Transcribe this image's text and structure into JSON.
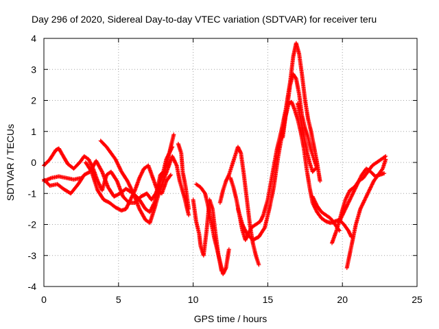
{
  "chart_data": {
    "type": "scatter",
    "title": "Day 296 of 2020, Sidereal Day-to-day VTEC variation (SDTVAR) for receiver teru",
    "xlabel": "GPS time / hours",
    "ylabel": "SDTVAR / TECUs",
    "xlim": [
      0,
      25
    ],
    "ylim": [
      -4,
      4
    ],
    "xticks": [
      "0",
      "5",
      "10",
      "15",
      "20",
      "25"
    ],
    "yticks": [
      "-4",
      "-3",
      "-2",
      "-1",
      "0",
      "1",
      "2",
      "3",
      "4"
    ],
    "grid": true,
    "marker": "+",
    "series_color": "#ff0000",
    "series": [
      {
        "name": "s1",
        "points": [
          [
            0,
            -0.1
          ],
          [
            0.4,
            0.1
          ],
          [
            0.8,
            0.4
          ],
          [
            1.0,
            0.45
          ],
          [
            1.3,
            0.2
          ],
          [
            1.6,
            -0.05
          ],
          [
            2.0,
            -0.2
          ],
          [
            2.4,
            0.0
          ],
          [
            2.7,
            0.2
          ],
          [
            3.0,
            0.1
          ],
          [
            3.3,
            -0.2
          ],
          [
            3.6,
            -0.6
          ],
          [
            3.9,
            -0.9
          ],
          [
            4.2,
            -0.4
          ],
          [
            4.5,
            -0.3
          ],
          [
            4.9,
            -0.6
          ],
          [
            5.3,
            -1.1
          ],
          [
            5.7,
            -1.3
          ],
          [
            6.1,
            -1.3
          ],
          [
            6.5,
            -1.1
          ],
          [
            6.9,
            -1.0
          ],
          [
            7.2,
            -1.2
          ],
          [
            7.5,
            -1.0
          ],
          [
            7.8,
            -0.6
          ],
          [
            8.1,
            -0.3
          ],
          [
            8.4,
            0.3
          ],
          [
            8.7,
            0.9
          ]
        ]
      },
      {
        "name": "s2",
        "points": [
          [
            0,
            -0.6
          ],
          [
            0.5,
            -0.5
          ],
          [
            1.0,
            -0.45
          ],
          [
            1.5,
            -0.5
          ],
          [
            2.0,
            -0.55
          ],
          [
            2.5,
            -0.5
          ]
        ]
      },
      {
        "name": "s3",
        "points": [
          [
            0,
            -0.55
          ],
          [
            0.4,
            -0.75
          ],
          [
            0.9,
            -0.7
          ],
          [
            1.3,
            -0.85
          ],
          [
            1.8,
            -1.0
          ],
          [
            2.3,
            -0.7
          ],
          [
            2.7,
            -0.4
          ],
          [
            3.1,
            -0.3
          ],
          [
            3.5,
            0.05
          ],
          [
            3.9,
            -0.3
          ],
          [
            4.3,
            -0.8
          ],
          [
            4.7,
            -1.1
          ],
          [
            5.1,
            -1.0
          ],
          [
            5.5,
            -0.85
          ],
          [
            6.0,
            -1.0
          ],
          [
            6.4,
            -1.2
          ],
          [
            6.8,
            -1.5
          ],
          [
            7.1,
            -1.6
          ],
          [
            7.4,
            -1.3
          ],
          [
            7.6,
            -0.9
          ],
          [
            7.8,
            -0.4
          ],
          [
            8.0,
            -0.3
          ],
          [
            8.2,
            0.1
          ],
          [
            8.4,
            0.3
          ],
          [
            8.6,
            0.5
          ]
        ]
      },
      {
        "name": "s4",
        "points": [
          [
            3.8,
            0.7
          ],
          [
            4.2,
            0.5
          ],
          [
            4.5,
            0.3
          ],
          [
            4.8,
            0.1
          ],
          [
            5.2,
            -0.3
          ],
          [
            5.6,
            -0.6
          ],
          [
            6.0,
            -1.0
          ],
          [
            6.4,
            -1.5
          ],
          [
            6.8,
            -1.85
          ],
          [
            7.1,
            -1.95
          ],
          [
            7.4,
            -1.5
          ],
          [
            7.7,
            -1.0
          ],
          [
            8.0,
            -0.6
          ],
          [
            8.3,
            -0.2
          ],
          [
            8.6,
            0.2
          ],
          [
            8.9,
            -0.1
          ],
          [
            9.1,
            -0.6
          ],
          [
            9.4,
            -1.1
          ],
          [
            9.7,
            -1.7
          ]
        ]
      },
      {
        "name": "s5",
        "points": [
          [
            2.8,
            0.0
          ],
          [
            3.2,
            -0.3
          ],
          [
            3.6,
            -0.9
          ],
          [
            4.0,
            -1.2
          ],
          [
            4.4,
            -1.3
          ],
          [
            4.8,
            -1.45
          ],
          [
            5.2,
            -1.55
          ],
          [
            5.5,
            -1.5
          ],
          [
            5.8,
            -1.2
          ],
          [
            6.1,
            -0.9
          ],
          [
            6.4,
            -0.5
          ],
          [
            6.7,
            -0.2
          ],
          [
            7.0,
            -0.1
          ],
          [
            7.3,
            -0.5
          ],
          [
            7.6,
            -0.9
          ],
          [
            7.9,
            -1.0
          ],
          [
            8.2,
            -0.6
          ],
          [
            8.5,
            -0.4
          ]
        ]
      },
      {
        "name": "s6",
        "points": [
          [
            9.0,
            0.6
          ],
          [
            9.2,
            0.3
          ],
          [
            9.3,
            -0.3
          ],
          [
            9.5,
            -0.8
          ],
          [
            9.7,
            -1.5
          ]
        ]
      },
      {
        "name": "s7",
        "points": [
          [
            10.0,
            -1.2
          ],
          [
            10.2,
            -1.9
          ],
          [
            10.4,
            -2.3
          ],
          [
            10.5,
            -2.7
          ],
          [
            10.7,
            -3.0
          ],
          [
            10.9,
            -2.2
          ],
          [
            11.1,
            -1.2
          ],
          [
            11.3,
            -1.5
          ],
          [
            11.5,
            -2.3
          ],
          [
            11.7,
            -3.0
          ],
          [
            11.9,
            -3.5
          ]
        ]
      },
      {
        "name": "s8",
        "points": [
          [
            10.2,
            -0.7
          ],
          [
            10.5,
            -0.8
          ],
          [
            10.8,
            -1.0
          ],
          [
            11.0,
            -1.4
          ],
          [
            11.2,
            -1.9
          ],
          [
            11.4,
            -2.4
          ],
          [
            11.6,
            -2.8
          ],
          [
            11.8,
            -3.2
          ],
          [
            12.0,
            -3.6
          ],
          [
            12.2,
            -3.4
          ],
          [
            12.4,
            -2.8
          ]
        ]
      },
      {
        "name": "s9",
        "points": [
          [
            11.8,
            -1.3
          ],
          [
            12.0,
            -0.9
          ],
          [
            12.2,
            -0.6
          ],
          [
            12.4,
            -0.4
          ],
          [
            12.6,
            -0.1
          ],
          [
            12.8,
            0.2
          ],
          [
            13.0,
            0.5
          ],
          [
            13.2,
            0.3
          ],
          [
            13.4,
            -0.4
          ],
          [
            13.6,
            -1.2
          ],
          [
            13.8,
            -2.0
          ],
          [
            14.0,
            -2.6
          ],
          [
            14.2,
            -3.0
          ],
          [
            14.4,
            -3.3
          ]
        ]
      },
      {
        "name": "s10",
        "points": [
          [
            12.5,
            -0.5
          ],
          [
            12.7,
            -0.8
          ],
          [
            12.9,
            -1.2
          ],
          [
            13.1,
            -1.7
          ],
          [
            13.3,
            -2.2
          ],
          [
            13.5,
            -2.5
          ],
          [
            13.7,
            -2.3
          ],
          [
            13.9,
            -2.1
          ],
          [
            14.2,
            -2.0
          ],
          [
            14.5,
            -1.9
          ],
          [
            14.7,
            -1.7
          ],
          [
            15.0,
            -1.2
          ],
          [
            15.3,
            -0.4
          ],
          [
            15.6,
            0.4
          ],
          [
            15.9,
            1.0
          ],
          [
            16.2,
            1.7
          ],
          [
            16.5,
            2.6
          ],
          [
            16.7,
            3.4
          ],
          [
            16.9,
            3.85
          ],
          [
            17.1,
            3.5
          ],
          [
            17.3,
            2.8
          ],
          [
            17.5,
            2.0
          ],
          [
            17.7,
            1.4
          ],
          [
            17.9,
            1.0
          ],
          [
            18.1,
            0.5
          ],
          [
            18.3,
            0.0
          ],
          [
            18.5,
            -0.6
          ]
        ]
      },
      {
        "name": "s11",
        "points": [
          [
            13.0,
            -1.5
          ],
          [
            13.3,
            -2.0
          ],
          [
            13.6,
            -2.3
          ],
          [
            14.0,
            -2.5
          ],
          [
            14.4,
            -2.4
          ],
          [
            14.8,
            -2.1
          ],
          [
            15.1,
            -1.5
          ],
          [
            15.4,
            -0.8
          ],
          [
            15.7,
            0.2
          ],
          [
            16.0,
            1.0
          ],
          [
            16.3,
            1.8
          ],
          [
            16.5,
            2.5
          ],
          [
            16.7,
            2.85
          ],
          [
            16.9,
            2.7
          ],
          [
            17.1,
            2.2
          ],
          [
            17.3,
            1.5
          ],
          [
            17.5,
            1.1
          ],
          [
            17.7,
            0.8
          ],
          [
            17.9,
            0.4
          ],
          [
            18.1,
            0.1
          ],
          [
            18.3,
            -0.2
          ]
        ]
      },
      {
        "name": "s12",
        "points": [
          [
            16.0,
            0.8
          ],
          [
            16.2,
            1.5
          ],
          [
            16.4,
            1.9
          ],
          [
            16.6,
            1.95
          ],
          [
            16.8,
            1.7
          ],
          [
            17.0,
            1.4
          ],
          [
            17.2,
            1.0
          ],
          [
            17.4,
            0.5
          ],
          [
            17.6,
            -0.2
          ],
          [
            17.8,
            -0.8
          ],
          [
            18.0,
            -1.3
          ],
          [
            18.3,
            -1.6
          ],
          [
            18.6,
            -1.8
          ],
          [
            18.9,
            -1.9
          ],
          [
            19.2,
            -1.95
          ],
          [
            19.5,
            -1.9
          ],
          [
            19.8,
            -1.85
          ],
          [
            20.1,
            -2.0
          ],
          [
            20.4,
            -2.2
          ],
          [
            20.6,
            -2.4
          ]
        ]
      },
      {
        "name": "s13",
        "points": [
          [
            17.0,
            1.9
          ],
          [
            17.2,
            1.4
          ],
          [
            17.4,
            0.9
          ],
          [
            17.6,
            0.4
          ],
          [
            17.8,
            0.0
          ],
          [
            18.0,
            -0.3
          ],
          [
            18.2,
            -0.2
          ]
        ]
      },
      {
        "name": "s14",
        "points": [
          [
            18.0,
            -1.1
          ],
          [
            18.3,
            -1.4
          ],
          [
            18.6,
            -1.6
          ],
          [
            18.9,
            -1.7
          ],
          [
            19.2,
            -1.8
          ],
          [
            19.5,
            -2.0
          ],
          [
            19.8,
            -2.2
          ]
        ]
      },
      {
        "name": "s15",
        "points": [
          [
            19.3,
            -2.6
          ],
          [
            19.6,
            -2.2
          ],
          [
            19.9,
            -1.7
          ],
          [
            20.2,
            -1.2
          ],
          [
            20.5,
            -0.9
          ],
          [
            20.8,
            -0.8
          ],
          [
            21.1,
            -0.6
          ],
          [
            21.4,
            -0.5
          ],
          [
            21.7,
            -0.3
          ],
          [
            22.0,
            -0.1
          ],
          [
            22.3,
            0.0
          ],
          [
            22.6,
            0.1
          ],
          [
            22.9,
            0.2
          ]
        ]
      },
      {
        "name": "s16",
        "points": [
          [
            20.3,
            -3.4
          ],
          [
            20.6,
            -2.7
          ],
          [
            20.9,
            -2.0
          ],
          [
            21.2,
            -1.5
          ],
          [
            21.5,
            -1.2
          ],
          [
            21.8,
            -0.9
          ],
          [
            22.1,
            -0.6
          ],
          [
            22.4,
            -0.4
          ],
          [
            22.7,
            -0.2
          ],
          [
            22.9,
            0.1
          ]
        ]
      },
      {
        "name": "s17",
        "points": [
          [
            19.8,
            -1.9
          ],
          [
            20.1,
            -1.6
          ],
          [
            20.4,
            -1.3
          ],
          [
            20.7,
            -1.0
          ],
          [
            21.0,
            -0.7
          ],
          [
            21.3,
            -0.4
          ],
          [
            21.6,
            -0.2
          ],
          [
            21.9,
            -0.3
          ],
          [
            22.2,
            -0.45
          ],
          [
            22.5,
            -0.4
          ],
          [
            22.8,
            -0.35
          ]
        ]
      }
    ]
  }
}
